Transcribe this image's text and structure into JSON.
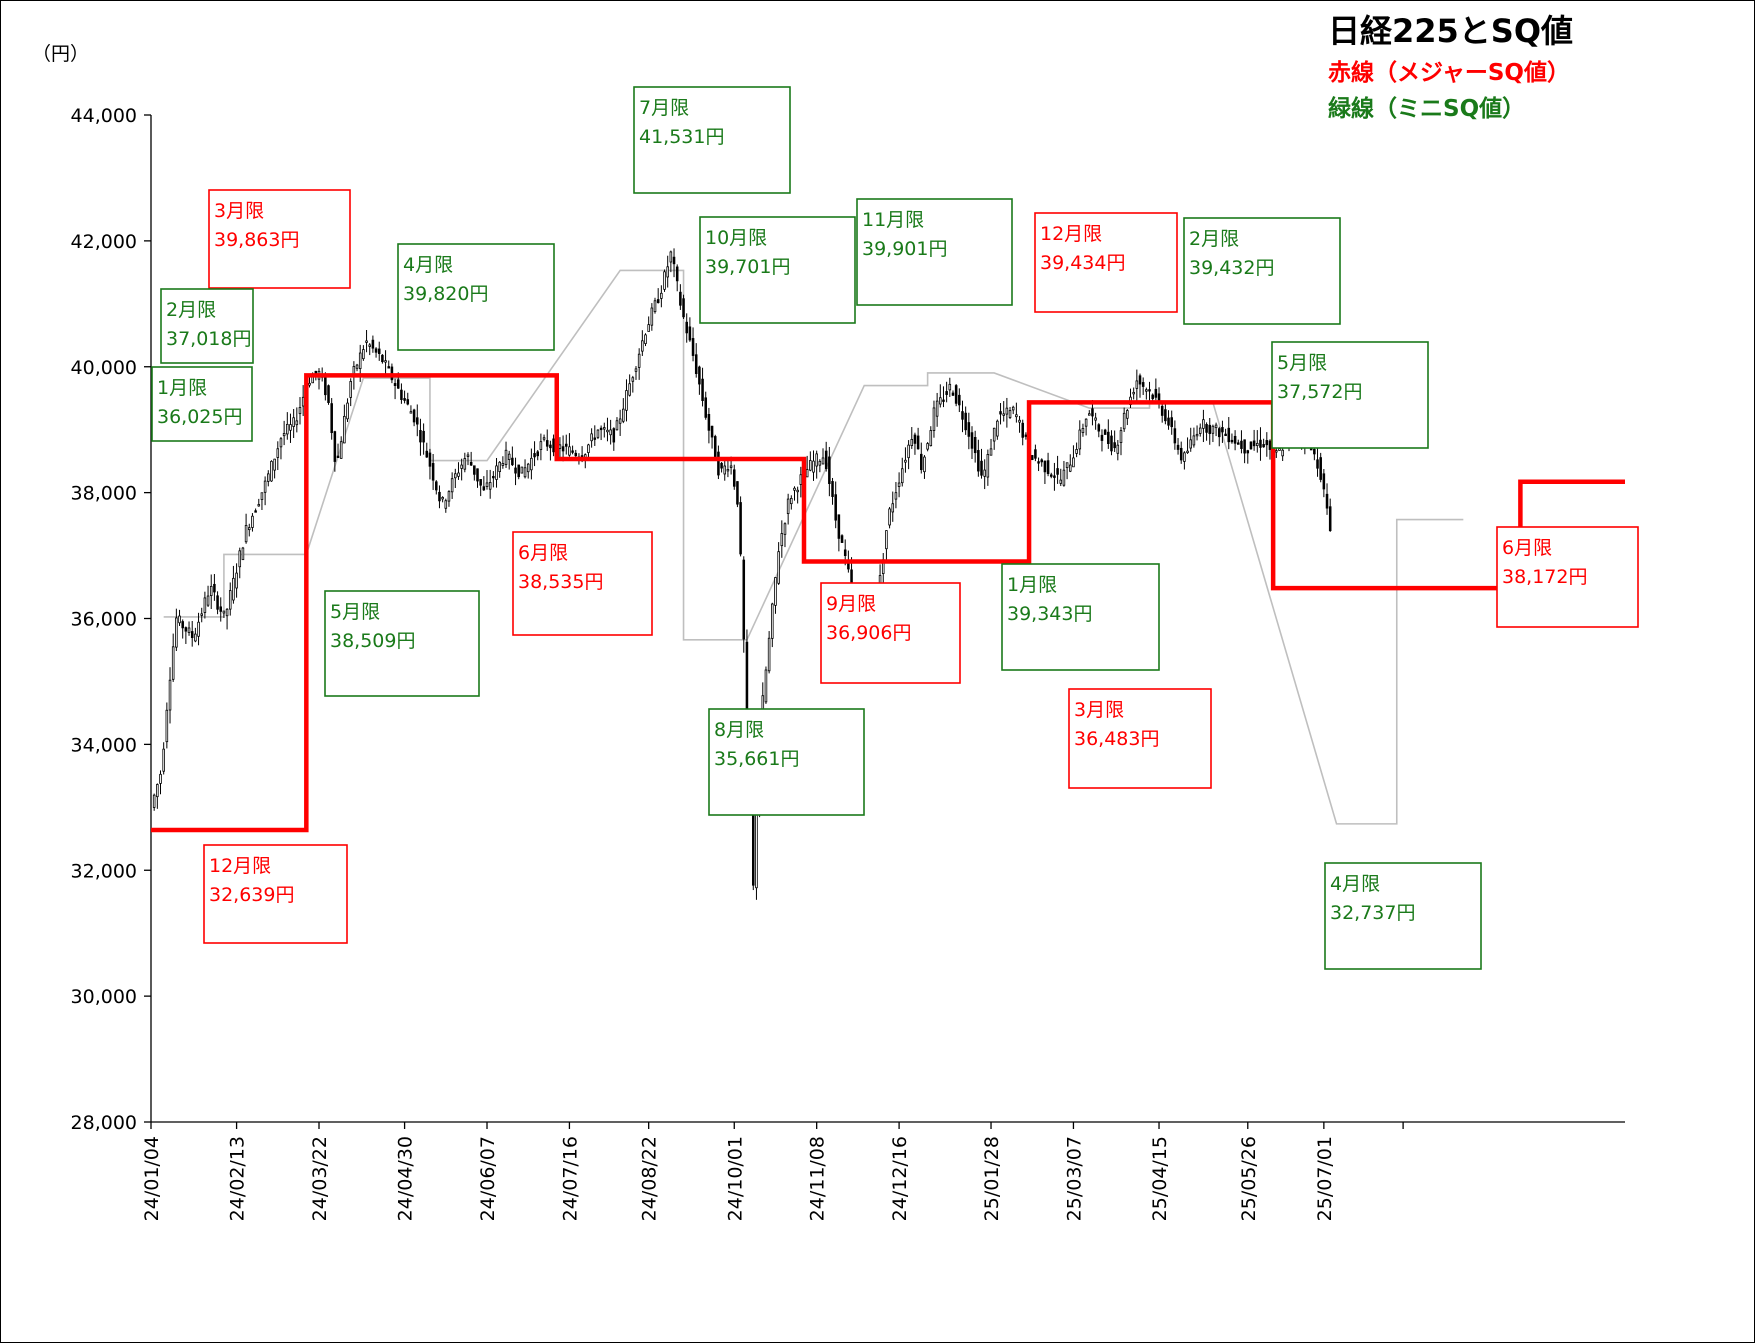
{
  "chart_data": {
    "type": "candlestick",
    "title": "日経225とSQ値",
    "subtitle_red": "赤線（メジャーSQ値）",
    "subtitle_green": "緑線（ミニSQ値）",
    "ylabel": "（円）",
    "ylim": [
      28000,
      44000
    ],
    "y_ticks": [
      "28,000",
      "30,000",
      "32,000",
      "34,000",
      "36,000",
      "38,000",
      "40,000",
      "42,000",
      "44,000"
    ],
    "y_tick_values": [
      28000,
      30000,
      32000,
      34000,
      36000,
      38000,
      40000,
      42000,
      44000
    ],
    "x_ticks": [
      "24/01/04",
      "24/02/13",
      "24/03/22",
      "24/04/30",
      "24/06/07",
      "24/07/16",
      "24/08/22",
      "24/10/01",
      "24/11/08",
      "24/12/16",
      "25/01/28",
      "25/03/07",
      "25/04/15",
      "25/05/26",
      "25/07/01"
    ],
    "colors": {
      "major_sq": "#ff0000",
      "mini_sq": "#bfbfbf",
      "box_green": "#1a7a1a",
      "box_red": "#ff0000"
    },
    "price_path": [
      [
        0,
        33000
      ],
      [
        5,
        33600
      ],
      [
        8,
        34800
      ],
      [
        12,
        36000
      ],
      [
        20,
        35700
      ],
      [
        28,
        36500
      ],
      [
        35,
        36000
      ],
      [
        45,
        37400
      ],
      [
        55,
        38200
      ],
      [
        62,
        38900
      ],
      [
        68,
        39100
      ],
      [
        75,
        39800
      ],
      [
        80,
        39900
      ],
      [
        84,
        39500
      ],
      [
        88,
        38400
      ],
      [
        95,
        39800
      ],
      [
        102,
        40400
      ],
      [
        110,
        40100
      ],
      [
        118,
        39600
      ],
      [
        125,
        39200
      ],
      [
        132,
        38500
      ],
      [
        138,
        37800
      ],
      [
        145,
        38300
      ],
      [
        150,
        38600
      ],
      [
        158,
        38000
      ],
      [
        168,
        38600
      ],
      [
        176,
        38300
      ],
      [
        186,
        38800
      ],
      [
        196,
        38700
      ],
      [
        205,
        38600
      ],
      [
        212,
        39000
      ],
      [
        220,
        38900
      ],
      [
        228,
        39800
      ],
      [
        235,
        40600
      ],
      [
        242,
        41200
      ],
      [
        247,
        41800
      ],
      [
        252,
        40900
      ],
      [
        258,
        40100
      ],
      [
        265,
        39000
      ],
      [
        270,
        38300
      ],
      [
        275,
        38500
      ],
      [
        279,
        37800
      ],
      [
        282,
        35200
      ],
      [
        284,
        33500
      ],
      [
        286,
        31700
      ],
      [
        289,
        34200
      ],
      [
        294,
        35800
      ],
      [
        298,
        37100
      ],
      [
        303,
        37900
      ],
      [
        310,
        38300
      ],
      [
        315,
        38500
      ],
      [
        320,
        38600
      ],
      [
        325,
        37600
      ],
      [
        330,
        36900
      ],
      [
        335,
        36100
      ],
      [
        340,
        35700
      ],
      [
        345,
        36300
      ],
      [
        350,
        37600
      ],
      [
        355,
        38200
      ],
      [
        362,
        39000
      ],
      [
        366,
        38400
      ],
      [
        372,
        39300
      ],
      [
        380,
        39700
      ],
      [
        388,
        39000
      ],
      [
        395,
        38200
      ],
      [
        402,
        39200
      ],
      [
        410,
        39300
      ],
      [
        418,
        38600
      ],
      [
        425,
        38400
      ],
      [
        432,
        38200
      ],
      [
        438,
        38600
      ],
      [
        445,
        39300
      ],
      [
        452,
        38900
      ],
      [
        458,
        38700
      ],
      [
        462,
        39200
      ],
      [
        468,
        39800
      ],
      [
        475,
        39600
      ],
      [
        482,
        39200
      ],
      [
        490,
        38500
      ],
      [
        498,
        39100
      ],
      [
        505,
        39000
      ],
      [
        512,
        38900
      ],
      [
        520,
        38700
      ],
      [
        528,
        38800
      ],
      [
        535,
        38600
      ],
      [
        542,
        39000
      ],
      [
        548,
        38900
      ],
      [
        555,
        38400
      ],
      [
        560,
        37400
      ],
      [
        565,
        36800
      ],
      [
        570,
        37100
      ],
      [
        575,
        37400
      ],
      [
        580,
        37800
      ],
      [
        585,
        38000
      ],
      [
        590,
        37500
      ],
      [
        593,
        35200
      ],
      [
        596,
        34600
      ],
      [
        598,
        31300
      ],
      [
        601,
        33300
      ],
      [
        605,
        33900
      ],
      [
        610,
        34400
      ],
      [
        616,
        35000
      ],
      [
        622,
        36200
      ],
      [
        627,
        37100
      ],
      [
        632,
        37500
      ],
      [
        636,
        37900
      ],
      [
        640,
        37600
      ],
      [
        645,
        38000
      ],
      [
        650,
        38100
      ],
      [
        655,
        37700
      ],
      [
        660,
        38100
      ],
      [
        665,
        38300
      ],
      [
        670,
        39000
      ],
      [
        675,
        39300
      ],
      [
        680,
        39500
      ],
      [
        685,
        39700
      ],
      [
        690,
        39900
      ],
      [
        695,
        39600
      ]
    ],
    "major_sq": [
      {
        "label": "12月限",
        "value": 32639,
        "x0": 0,
        "x1": 49
      },
      {
        "label": "3月限",
        "value": 39863,
        "x0": 49,
        "x1": 128
      },
      {
        "label": "6月限",
        "value": 38535,
        "x0": 128,
        "x1": 206
      },
      {
        "label": "9月限",
        "value": 36906,
        "x0": 206,
        "x1": 277
      },
      {
        "label": "12月限",
        "value": 39434,
        "x0": 277,
        "x1": 354
      },
      {
        "label": "3月限",
        "value": 36483,
        "x0": 354,
        "x1": 432
      },
      {
        "label": "6月限",
        "value": 38172,
        "x0": 432,
        "x1": 465
      }
    ],
    "mini_sq": [
      {
        "label": "1月限",
        "value": 36025,
        "x0": 4,
        "x1": 23
      },
      {
        "label": "2月限",
        "value": 37018,
        "x0": 23,
        "x1": 49
      },
      {
        "label": "4月限",
        "value": 39820,
        "x0": 67,
        "x1": 88
      },
      {
        "label": "5月限",
        "value": 38509,
        "x0": 88,
        "x1": 106
      },
      {
        "label": "7月限",
        "value": 41531,
        "x0": 148,
        "x1": 168
      },
      {
        "label": "8月限",
        "value": 35661,
        "x0": 168,
        "x1": 188
      },
      {
        "label": "10月限",
        "value": 39701,
        "x0": 225,
        "x1": 245
      },
      {
        "label": "11月限",
        "value": 39901,
        "x0": 245,
        "x1": 266
      },
      {
        "label": "1月限",
        "value": 39343,
        "x0": 296,
        "x1": 315
      },
      {
        "label": "2月限",
        "value": 39432,
        "x0": 315,
        "x1": 335
      },
      {
        "label": "4月限",
        "value": 32737,
        "x0": 374,
        "x1": 393
      },
      {
        "label": "5月限",
        "value": 37572,
        "x0": 393,
        "x1": 414
      }
    ],
    "boxes": [
      {
        "color": "red",
        "line1": "3月限",
        "line2": "39,863円"
      },
      {
        "color": "green",
        "line1": "2月限",
        "line2": "37,018円"
      },
      {
        "color": "green",
        "line1": "1月限",
        "line2": "36,025円"
      },
      {
        "color": "red",
        "line1": "12月限",
        "line2": "32,639円"
      },
      {
        "color": "green",
        "line1": "4月限",
        "line2": "39,820円"
      },
      {
        "color": "green",
        "line1": "5月限",
        "line2": "38,509円"
      },
      {
        "color": "red",
        "line1": "6月限",
        "line2": "38,535円"
      },
      {
        "color": "green",
        "line1": "7月限",
        "line2": "41,531円"
      },
      {
        "color": "green",
        "line1": "10月限",
        "line2": "39,701円"
      },
      {
        "color": "green",
        "line1": "8月限",
        "line2": "35,661円"
      },
      {
        "color": "green",
        "line1": "11月限",
        "line2": "39,901円"
      },
      {
        "color": "red",
        "line1": "9月限",
        "line2": "36,906円"
      },
      {
        "color": "red",
        "line1": "12月限",
        "line2": "39,434円"
      },
      {
        "color": "green",
        "line1": "1月限",
        "line2": "39,343円"
      },
      {
        "color": "red",
        "line1": "3月限",
        "line2": "36,483円"
      },
      {
        "color": "green",
        "line1": "2月限",
        "line2": "39,432円"
      },
      {
        "color": "green",
        "line1": "5月限",
        "line2": "37,572円"
      },
      {
        "color": "green",
        "line1": "4月限",
        "line2": "32,737円"
      },
      {
        "color": "red",
        "line1": "6月限",
        "line2": "38,172円"
      }
    ]
  }
}
